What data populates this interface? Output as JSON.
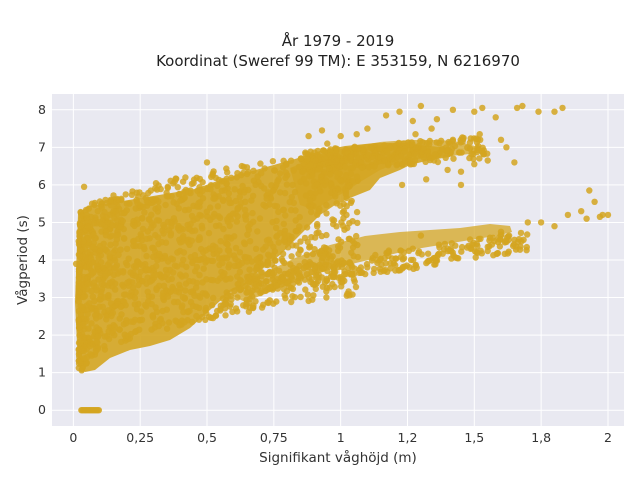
{
  "chart_data": {
    "type": "scatter",
    "title_lines": [
      "År 1979 - 2019",
      "Koordinat (Sweref 99 TM): E 353159, N 6216970"
    ],
    "xlabel": "Signifikant våghöjd (m)",
    "ylabel": "Vågperiod (s)",
    "xlim": [
      -0.08,
      2.06
    ],
    "ylim": [
      -0.42,
      8.42
    ],
    "x_ticks": [
      0,
      0.25,
      0.5,
      0.75,
      1,
      1.25,
      1.5,
      1.75,
      2
    ],
    "x_tick_labels": [
      "0",
      "0,25",
      "0,5",
      "0,75",
      "1",
      "1,2",
      "1,5",
      "1,8",
      "2"
    ],
    "y_ticks": [
      0,
      1,
      2,
      3,
      4,
      5,
      6,
      7,
      8
    ],
    "y_tick_labels": [
      "0",
      "1",
      "2",
      "3",
      "4",
      "5",
      "6",
      "7",
      "8"
    ],
    "grid": true,
    "marker_color": "#d4a520",
    "background_color": "#e9e9f1",
    "outliers": [
      [
        0.04,
        5.95
      ],
      [
        0.5,
        6.6
      ],
      [
        0.88,
        7.3
      ],
      [
        1.17,
        7.85
      ],
      [
        1.22,
        7.95
      ],
      [
        1.3,
        8.1
      ],
      [
        1.36,
        7.75
      ],
      [
        1.42,
        8.0
      ],
      [
        1.5,
        7.95
      ],
      [
        1.53,
        8.05
      ],
      [
        1.58,
        7.8
      ],
      [
        1.66,
        8.05
      ],
      [
        1.68,
        8.1
      ],
      [
        1.74,
        7.95
      ],
      [
        1.83,
        8.05
      ],
      [
        1.8,
        7.95
      ],
      [
        1.9,
        5.3
      ],
      [
        1.93,
        5.85
      ],
      [
        1.95,
        5.55
      ],
      [
        1.98,
        5.2
      ],
      [
        2.0,
        5.2
      ],
      [
        1.97,
        5.15
      ],
      [
        1.92,
        5.1
      ],
      [
        1.85,
        5.2
      ],
      [
        1.8,
        4.9
      ],
      [
        1.7,
        5.0
      ],
      [
        1.75,
        5.0
      ],
      [
        1.6,
        4.75
      ],
      [
        1.63,
        4.65
      ],
      [
        1.55,
        4.35
      ],
      [
        1.45,
        6.35
      ],
      [
        1.5,
        6.55
      ],
      [
        1.55,
        6.65
      ],
      [
        1.42,
        7.2
      ],
      [
        1.46,
        7.25
      ],
      [
        1.38,
        6.95
      ],
      [
        1.34,
        7.5
      ],
      [
        1.4,
        6.4
      ],
      [
        1.32,
        6.15
      ],
      [
        1.27,
        4.3
      ],
      [
        1.27,
        7.7
      ],
      [
        1.1,
        7.5
      ],
      [
        1.06,
        7.35
      ],
      [
        1.0,
        7.3
      ],
      [
        0.95,
        7.1
      ],
      [
        0.93,
        7.45
      ],
      [
        1.18,
        4.25
      ],
      [
        1.3,
        4.65
      ],
      [
        1.4,
        4.3
      ],
      [
        1.12,
        4.05
      ],
      [
        1.23,
        6.0
      ],
      [
        1.45,
        6.0
      ],
      [
        1.6,
        7.2
      ],
      [
        1.62,
        7.0
      ],
      [
        1.65,
        6.6
      ],
      [
        1.52,
        7.35
      ],
      [
        1.28,
        7.35
      ],
      [
        0.63,
        6.5
      ],
      [
        0.82,
        6.0
      ],
      [
        0.2,
        5.5
      ],
      [
        0.3,
        5.6
      ],
      [
        0.35,
        5.7
      ],
      [
        0.42,
        5.8
      ],
      [
        0.12,
        5.6
      ],
      [
        0.25,
        5.45
      ],
      [
        0.07,
        5.5
      ],
      [
        0.05,
        5.2
      ],
      [
        0.15,
        5.3
      ],
      [
        0.02,
        3.3
      ],
      [
        0.01,
        3.9
      ],
      [
        0.02,
        2.4
      ],
      [
        0.03,
        1.6
      ],
      [
        0.02,
        4.5
      ]
    ]
  }
}
